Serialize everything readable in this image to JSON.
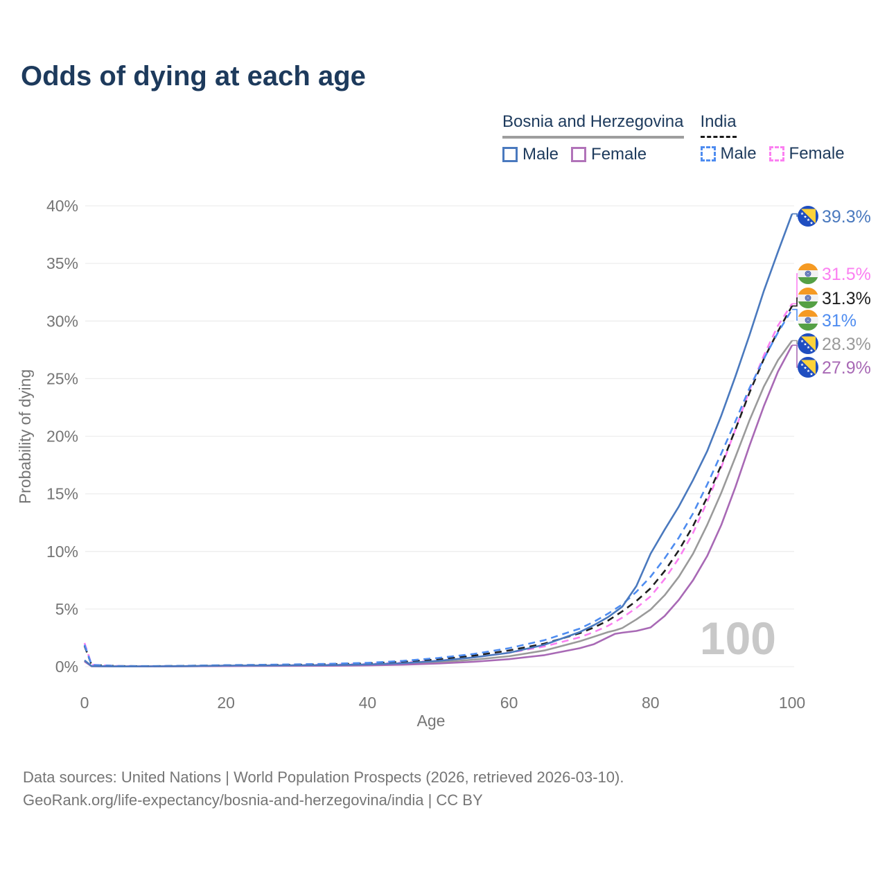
{
  "title": "Odds of dying at each age",
  "watermark": "100",
  "legend": {
    "groups": [
      {
        "name": "Bosnia and Herzegovina",
        "line_style": "solid",
        "line_color": "#9e9e9e",
        "items": [
          {
            "label": "Male",
            "swatch_color": "#4a79be",
            "swatch_style": "solid"
          },
          {
            "label": "Female",
            "swatch_color": "#b173b9",
            "swatch_style": "solid"
          }
        ]
      },
      {
        "name": "India",
        "line_style": "dashed",
        "line_color": "#1a1a1a",
        "items": [
          {
            "label": "Male",
            "swatch_color": "#4e8cf0",
            "swatch_style": "dashed"
          },
          {
            "label": "Female",
            "swatch_color": "#fb80f1",
            "swatch_style": "dashed"
          }
        ]
      }
    ]
  },
  "chart_data": {
    "type": "line",
    "title": "Odds of dying at each age",
    "xlabel": "Age",
    "ylabel": "Probability of dying",
    "xlim": [
      0,
      100
    ],
    "ylim": [
      0,
      40
    ],
    "grid": "horizontal-only",
    "x_ticks": [
      0,
      20,
      40,
      60,
      80,
      100
    ],
    "y_tick_values": [
      0,
      5,
      10,
      15,
      20,
      25,
      30,
      35,
      40
    ],
    "y_tick_labels": [
      "0%",
      "5%",
      "10%",
      "15%",
      "20%",
      "25%",
      "30%",
      "35%",
      "40%"
    ],
    "x": [
      0,
      1,
      5,
      10,
      15,
      20,
      25,
      30,
      35,
      40,
      45,
      50,
      55,
      60,
      65,
      70,
      72,
      74,
      75,
      76,
      78,
      80,
      82,
      84,
      86,
      88,
      90,
      92,
      94,
      96,
      98,
      100
    ],
    "series": [
      {
        "name": "Bosnia and Herzegovina - Overall",
        "color": "#9a9a9a",
        "dash": "solid",
        "flag": "ba",
        "end_label": "28.3%",
        "values": [
          0.5,
          0.04,
          0.02,
          0.02,
          0.04,
          0.07,
          0.08,
          0.09,
          0.11,
          0.15,
          0.24,
          0.38,
          0.6,
          0.9,
          1.4,
          2.2,
          2.6,
          3.0,
          3.15,
          3.35,
          4.1,
          4.95,
          6.2,
          7.8,
          9.8,
          12.3,
          15.1,
          18.2,
          21.4,
          24.3,
          26.6,
          28.3
        ]
      },
      {
        "name": "Bosnia and Herzegovina - Female",
        "color": "#a869b5",
        "dash": "solid",
        "flag": "ba",
        "end_label": "27.9%",
        "values": [
          0.45,
          0.03,
          0.02,
          0.02,
          0.03,
          0.05,
          0.06,
          0.07,
          0.08,
          0.11,
          0.17,
          0.27,
          0.42,
          0.65,
          1.0,
          1.6,
          1.95,
          2.55,
          2.85,
          2.95,
          3.1,
          3.4,
          4.4,
          5.8,
          7.5,
          9.6,
          12.3,
          15.6,
          19.2,
          22.6,
          25.6,
          27.9
        ]
      },
      {
        "name": "India - Female",
        "color": "#fb80f1",
        "dash": "dashed",
        "flag": "in",
        "end_label": "31.5%",
        "values": [
          2.05,
          0.16,
          0.05,
          0.04,
          0.06,
          0.09,
          0.11,
          0.14,
          0.18,
          0.24,
          0.35,
          0.52,
          0.8,
          1.2,
          1.75,
          2.55,
          3.0,
          3.55,
          3.9,
          4.25,
          5.1,
          6.1,
          7.6,
          9.4,
          11.6,
          14.3,
          17.3,
          20.6,
          24.0,
          27.0,
          29.6,
          31.5
        ]
      },
      {
        "name": "India - Overall",
        "color": "#1f1f1f",
        "dash": "dashed",
        "flag": "in",
        "end_label": "31.3%",
        "values": [
          1.8,
          0.14,
          0.05,
          0.04,
          0.07,
          0.11,
          0.13,
          0.16,
          0.21,
          0.28,
          0.42,
          0.63,
          0.95,
          1.4,
          2.0,
          2.9,
          3.4,
          4.0,
          4.4,
          4.8,
          5.7,
          6.8,
          8.3,
          10.1,
          12.2,
          14.7,
          17.5,
          20.6,
          23.8,
          26.7,
          29.1,
          31.3
        ]
      },
      {
        "name": "India - Male",
        "color": "#4e8cf0",
        "dash": "dashed",
        "flag": "in",
        "end_label": "31%",
        "values": [
          1.9,
          0.15,
          0.05,
          0.05,
          0.08,
          0.13,
          0.16,
          0.2,
          0.25,
          0.33,
          0.5,
          0.75,
          1.1,
          1.6,
          2.3,
          3.3,
          3.9,
          4.6,
          5.0,
          5.4,
          6.5,
          7.8,
          9.4,
          11.2,
          13.3,
          15.8,
          18.5,
          21.3,
          24.2,
          26.7,
          29.0,
          31.0
        ]
      },
      {
        "name": "Bosnia and Herzegovina - Male",
        "color": "#4a79be",
        "dash": "solid",
        "flag": "ba",
        "end_label": "39.3%",
        "values": [
          0.55,
          0.05,
          0.02,
          0.03,
          0.05,
          0.09,
          0.1,
          0.12,
          0.14,
          0.19,
          0.3,
          0.5,
          0.8,
          1.2,
          1.9,
          3.0,
          3.6,
          4.3,
          4.75,
          5.2,
          7.0,
          9.8,
          11.9,
          13.9,
          16.2,
          18.7,
          21.8,
          25.2,
          28.8,
          32.6,
          36.0,
          39.3
        ]
      }
    ],
    "flag_colors": {
      "ba": {
        "field": "#1f4ec0",
        "triangle": "#fdd23a",
        "stars": "#ffffff"
      },
      "in": {
        "saffron": "#f59a23",
        "white": "#f2f2f2",
        "green": "#55a045",
        "chakra": "#3b55a5"
      }
    }
  },
  "footer": {
    "line1": "Data sources: United Nations | World Population Prospects (2026, retrieved 2026-03-10).",
    "line2": "GeoRank.org/life-expectancy/bosnia-and-herzegovina/india | CC BY"
  }
}
